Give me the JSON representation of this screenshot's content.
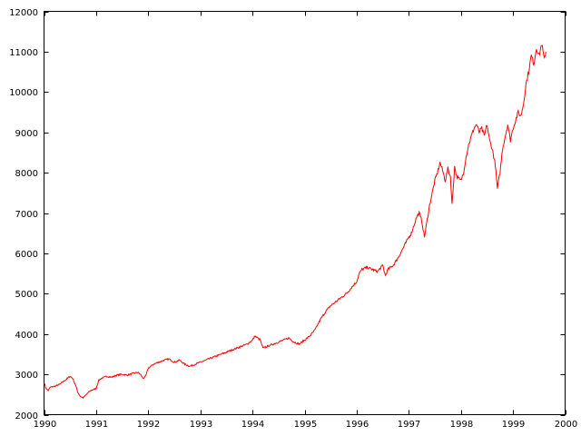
{
  "chart_data": {
    "type": "line",
    "title": "",
    "xlabel": "",
    "ylabel": "",
    "xlim": [
      1990,
      2000
    ],
    "ylim": [
      2000,
      12000
    ],
    "x_ticks": [
      1990,
      1991,
      1992,
      1993,
      1994,
      1995,
      1996,
      1997,
      1998,
      1999,
      2000
    ],
    "x_tick_labels": [
      "1990",
      "1991",
      "1992",
      "1993",
      "1994",
      "1995",
      "1996",
      "1997",
      "1998",
      "1999",
      "2000"
    ],
    "y_ticks": [
      2000,
      3000,
      4000,
      5000,
      6000,
      7000,
      8000,
      9000,
      10000,
      11000,
      12000
    ],
    "y_tick_labels": [
      "2000",
      "3000",
      "4000",
      "5000",
      "6000",
      "7000",
      "8000",
      "9000",
      "10000",
      "11000",
      "12000"
    ],
    "grid": false,
    "legend": "none",
    "series": [
      {
        "color": "#ff0000",
        "x": [
          1990.0,
          1990.04,
          1990.08,
          1990.12,
          1990.2,
          1990.3,
          1990.4,
          1990.5,
          1990.55,
          1990.6,
          1990.65,
          1990.7,
          1990.75,
          1990.8,
          1990.85,
          1990.9,
          1991.0,
          1991.05,
          1991.1,
          1991.2,
          1991.3,
          1991.4,
          1991.5,
          1991.6,
          1991.7,
          1991.8,
          1991.85,
          1991.9,
          1991.95,
          1992.0,
          1992.1,
          1992.2,
          1992.3,
          1992.4,
          1992.5,
          1992.6,
          1992.7,
          1992.8,
          1992.9,
          1993.0,
          1993.1,
          1993.2,
          1993.3,
          1993.4,
          1993.5,
          1993.6,
          1993.7,
          1993.8,
          1993.9,
          1994.0,
          1994.05,
          1994.1,
          1994.15,
          1994.2,
          1994.3,
          1994.4,
          1994.5,
          1994.6,
          1994.7,
          1994.8,
          1994.9,
          1995.0,
          1995.1,
          1995.2,
          1995.3,
          1995.4,
          1995.5,
          1995.6,
          1995.7,
          1995.8,
          1995.9,
          1996.0,
          1996.05,
          1996.1,
          1996.2,
          1996.3,
          1996.4,
          1996.5,
          1996.55,
          1996.6,
          1996.7,
          1996.8,
          1996.9,
          1997.0,
          1997.05,
          1997.1,
          1997.15,
          1997.2,
          1997.25,
          1997.3,
          1997.4,
          1997.45,
          1997.5,
          1997.55,
          1997.6,
          1997.65,
          1997.7,
          1997.75,
          1997.8,
          1997.83,
          1997.88,
          1997.92,
          1998.0,
          1998.05,
          1998.1,
          1998.15,
          1998.2,
          1998.25,
          1998.3,
          1998.35,
          1998.4,
          1998.45,
          1998.5,
          1998.55,
          1998.6,
          1998.63,
          1998.66,
          1998.7,
          1998.75,
          1998.8,
          1998.85,
          1998.9,
          1998.95,
          1999.0,
          1999.05,
          1999.1,
          1999.15,
          1999.2,
          1999.25,
          1999.3,
          1999.35,
          1999.4,
          1999.45,
          1999.5,
          1999.55,
          1999.6,
          1999.63
        ],
        "values": [
          2800,
          2650,
          2600,
          2680,
          2700,
          2750,
          2850,
          2950,
          2900,
          2750,
          2550,
          2450,
          2420,
          2480,
          2550,
          2600,
          2650,
          2850,
          2900,
          2950,
          2930,
          2980,
          3000,
          2980,
          3020,
          3050,
          3000,
          2900,
          2950,
          3150,
          3250,
          3300,
          3350,
          3380,
          3300,
          3350,
          3250,
          3200,
          3250,
          3300,
          3350,
          3400,
          3450,
          3500,
          3550,
          3600,
          3650,
          3700,
          3750,
          3850,
          3950,
          3900,
          3850,
          3650,
          3700,
          3750,
          3800,
          3850,
          3900,
          3800,
          3750,
          3850,
          3950,
          4100,
          4350,
          4550,
          4700,
          4800,
          4900,
          5000,
          5150,
          5300,
          5500,
          5600,
          5650,
          5600,
          5550,
          5700,
          5450,
          5600,
          5700,
          5900,
          6150,
          6400,
          6500,
          6700,
          6900,
          7000,
          6800,
          6400,
          7200,
          7500,
          7800,
          8000,
          8250,
          8050,
          7800,
          8100,
          7900,
          7200,
          8150,
          7900,
          7800,
          8000,
          8400,
          8700,
          8900,
          9100,
          9200,
          9000,
          9100,
          8900,
          9200,
          8800,
          8600,
          8400,
          8200,
          7600,
          8000,
          8600,
          8900,
          9200,
          8800,
          9100,
          9300,
          9500,
          9400,
          9700,
          10200,
          10500,
          10900,
          10700,
          11100,
          10900,
          11200,
          10800,
          11000
        ]
      }
    ]
  }
}
